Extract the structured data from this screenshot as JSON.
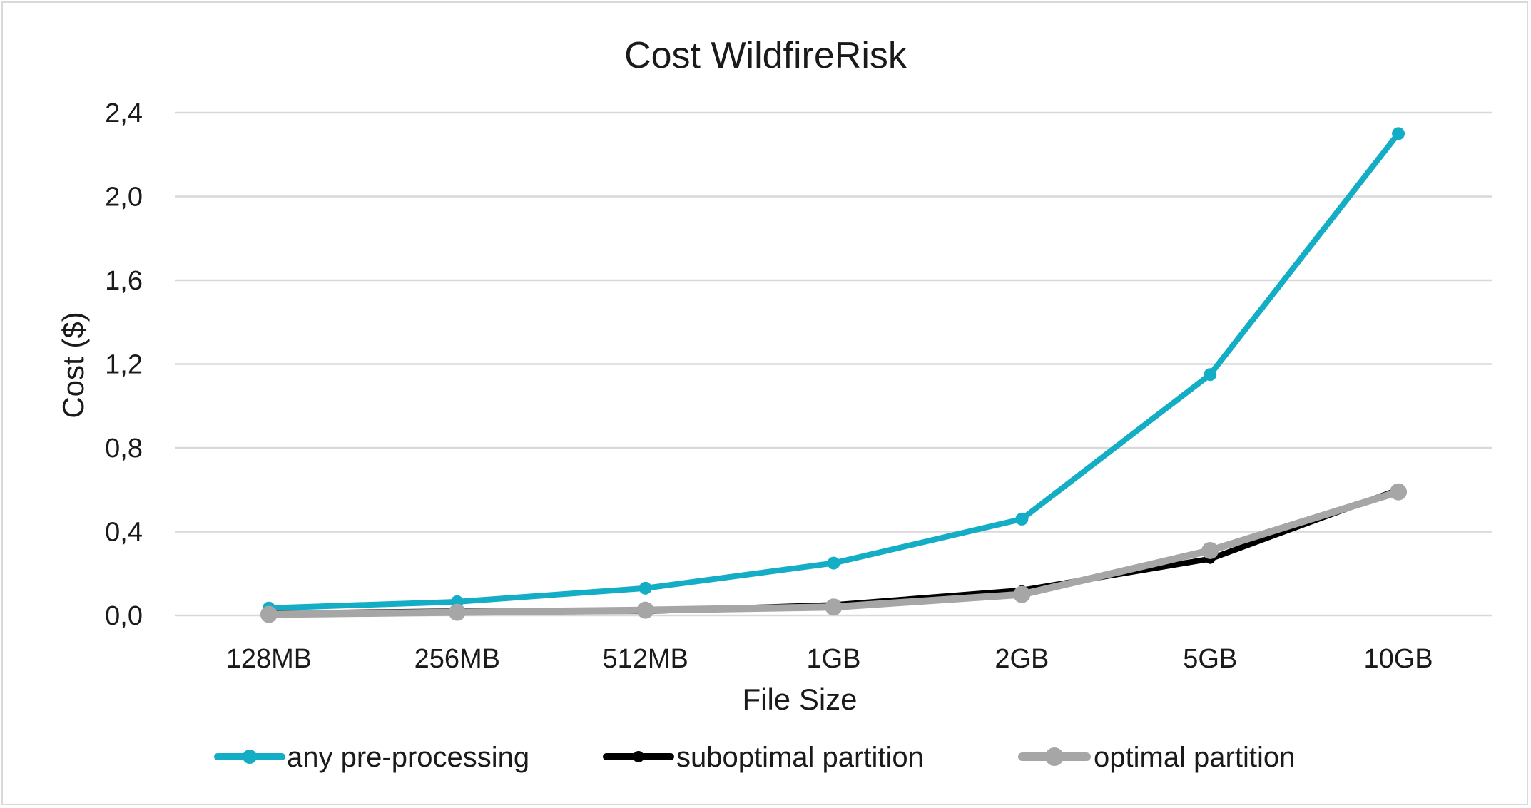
{
  "chart_data": {
    "type": "line",
    "title": "Cost WildfireRisk",
    "xlabel": "File Size",
    "ylabel": "Cost ($)",
    "categories": [
      "128MB",
      "256MB",
      "512MB",
      "1GB",
      "2GB",
      "5GB",
      "10GB"
    ],
    "ylim": [
      0,
      2.4
    ],
    "yticks": [
      "0,0",
      "0,4",
      "0,8",
      "1,2",
      "1,6",
      "2,0",
      "2,4"
    ],
    "ytick_values": [
      0,
      0.4,
      0.8,
      1.2,
      1.6,
      2.0,
      2.4
    ],
    "grid": true,
    "legend_position": "bottom",
    "series": [
      {
        "name": "any pre-processing",
        "color": "#13aec5",
        "values": [
          0.035,
          0.065,
          0.13,
          0.25,
          0.46,
          1.15,
          2.3
        ]
      },
      {
        "name": "suboptimal partition",
        "color": "#000000",
        "values": [
          0.01,
          0.02,
          0.02,
          0.05,
          0.12,
          0.27,
          0.6
        ]
      },
      {
        "name": "optimal partition",
        "color": "#a6a6a6",
        "values": [
          0.005,
          0.015,
          0.025,
          0.04,
          0.1,
          0.31,
          0.59
        ]
      }
    ]
  }
}
